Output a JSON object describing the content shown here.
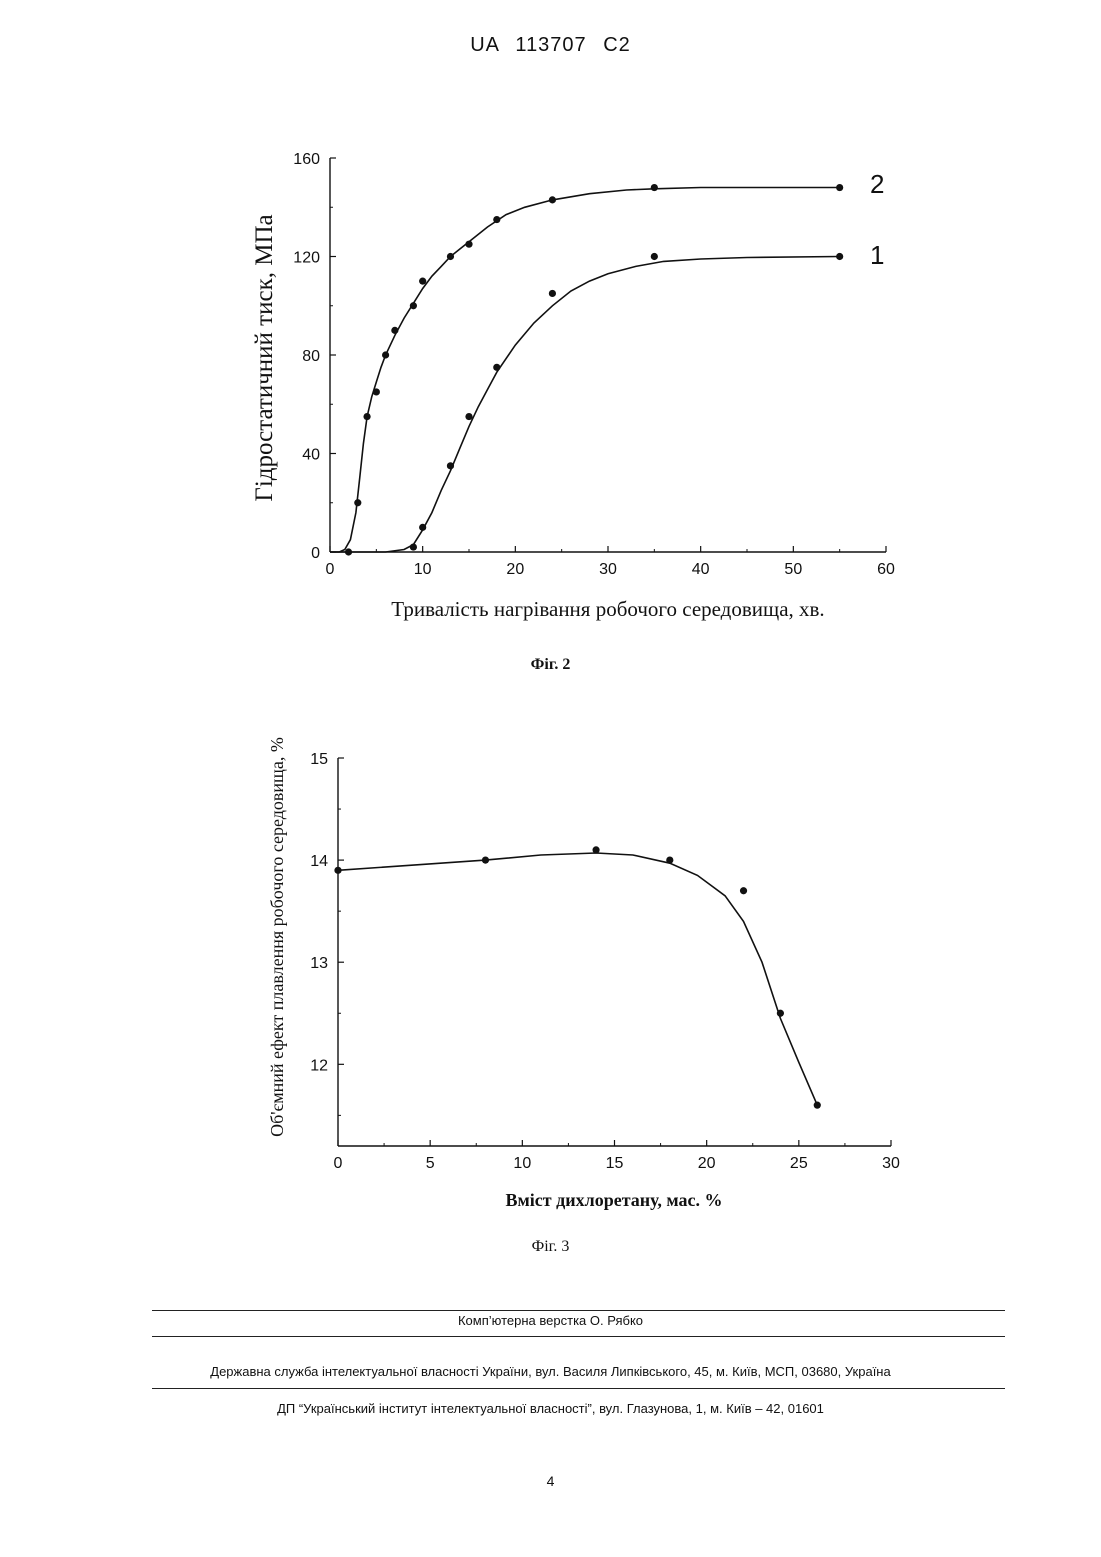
{
  "header": {
    "text": "UA 113707 C2"
  },
  "figures": [
    {
      "caption": "Фіг. 2"
    },
    {
      "caption": "Фіг. 3"
    }
  ],
  "chart_data": [
    {
      "type": "line",
      "xlabel": "Тривалість нагрівання робочого середовища, хв.",
      "ylabel": "Гідростатичний тиск, МПа",
      "xlim": [
        0,
        60
      ],
      "ylim": [
        0,
        160
      ],
      "xticks": [
        0,
        10,
        20,
        30,
        40,
        50,
        60
      ],
      "yticks": [
        0,
        40,
        80,
        120,
        160
      ],
      "series": [
        {
          "name": "1",
          "points": [
            [
              9,
              2
            ],
            [
              10,
              10
            ],
            [
              13,
              35
            ],
            [
              15,
              55
            ],
            [
              18,
              75
            ],
            [
              24,
              105
            ],
            [
              35,
              120
            ],
            [
              55,
              120
            ]
          ],
          "curve": [
            [
              0,
              0
            ],
            [
              6,
              0
            ],
            [
              8,
              1
            ],
            [
              9,
              3
            ],
            [
              10,
              9
            ],
            [
              11,
              16
            ],
            [
              12,
              25
            ],
            [
              13,
              33
            ],
            [
              14,
              42
            ],
            [
              15,
              51
            ],
            [
              16,
              59
            ],
            [
              17,
              66
            ],
            [
              18,
              73
            ],
            [
              20,
              84
            ],
            [
              22,
              93
            ],
            [
              24,
              100
            ],
            [
              26,
              106
            ],
            [
              28,
              110
            ],
            [
              30,
              113
            ],
            [
              33,
              116
            ],
            [
              36,
              118
            ],
            [
              40,
              119
            ],
            [
              45,
              119.6
            ],
            [
              55,
              120
            ]
          ]
        },
        {
          "name": "2",
          "points": [
            [
              2,
              0
            ],
            [
              3,
              20
            ],
            [
              4,
              55
            ],
            [
              5,
              65
            ],
            [
              6,
              80
            ],
            [
              7,
              90
            ],
            [
              9,
              100
            ],
            [
              10,
              110
            ],
            [
              13,
              120
            ],
            [
              15,
              125
            ],
            [
              18,
              135
            ],
            [
              24,
              143
            ],
            [
              35,
              148
            ],
            [
              55,
              148
            ]
          ],
          "curve": [
            [
              0,
              0
            ],
            [
              1,
              0
            ],
            [
              1.6,
              1
            ],
            [
              2.2,
              5
            ],
            [
              2.8,
              16
            ],
            [
              3.2,
              30
            ],
            [
              3.6,
              44
            ],
            [
              4,
              55
            ],
            [
              4.5,
              63
            ],
            [
              5,
              69
            ],
            [
              5.5,
              75
            ],
            [
              6,
              80
            ],
            [
              7,
              88
            ],
            [
              8,
              95
            ],
            [
              9,
              101
            ],
            [
              10,
              107
            ],
            [
              11,
              112
            ],
            [
              12,
              116
            ],
            [
              13,
              120
            ],
            [
              14,
              123
            ],
            [
              15,
              126
            ],
            [
              17,
              132
            ],
            [
              19,
              137
            ],
            [
              21,
              140
            ],
            [
              24,
              143
            ],
            [
              28,
              145.5
            ],
            [
              32,
              147
            ],
            [
              35,
              147.5
            ],
            [
              40,
              148
            ],
            [
              55,
              148
            ]
          ]
        }
      ]
    },
    {
      "type": "line",
      "xlabel": "Вміст дихлоретану, мас. %",
      "ylabel": "Об'ємний ефект плавлення робочого середовища, %",
      "xlim": [
        0,
        30
      ],
      "ylim": [
        11.2,
        15
      ],
      "xticks": [
        0,
        5,
        10,
        15,
        20,
        25,
        30
      ],
      "yticks": [
        12,
        13,
        14,
        15
      ],
      "series": [
        {
          "name": "",
          "points": [
            [
              0,
              13.9
            ],
            [
              8,
              14.0
            ],
            [
              14,
              14.1
            ],
            [
              18,
              14.0
            ],
            [
              22,
              13.7
            ],
            [
              24,
              12.5
            ],
            [
              26,
              11.6
            ]
          ],
          "curve": [
            [
              0,
              13.9
            ],
            [
              4,
              13.95
            ],
            [
              8,
              14.0
            ],
            [
              11,
              14.05
            ],
            [
              14,
              14.07
            ],
            [
              16,
              14.05
            ],
            [
              18,
              13.97
            ],
            [
              19.5,
              13.85
            ],
            [
              21,
              13.65
            ],
            [
              22,
              13.4
            ],
            [
              23,
              13.0
            ],
            [
              24,
              12.45
            ],
            [
              25,
              12.02
            ],
            [
              26,
              11.6
            ]
          ]
        }
      ]
    }
  ],
  "footer": {
    "layout_credit": "Комп’ютерна верстка О. Рябко",
    "service": "Державна служба інтелектуальної власності України, вул. Василя Липківського, 45, м. Київ, МСП, 03680, Україна",
    "institute": "ДП “Український інститут інтелектуальної власності”, вул. Глазунова, 1, м. Київ – 42, 01601",
    "page_number": "4"
  }
}
